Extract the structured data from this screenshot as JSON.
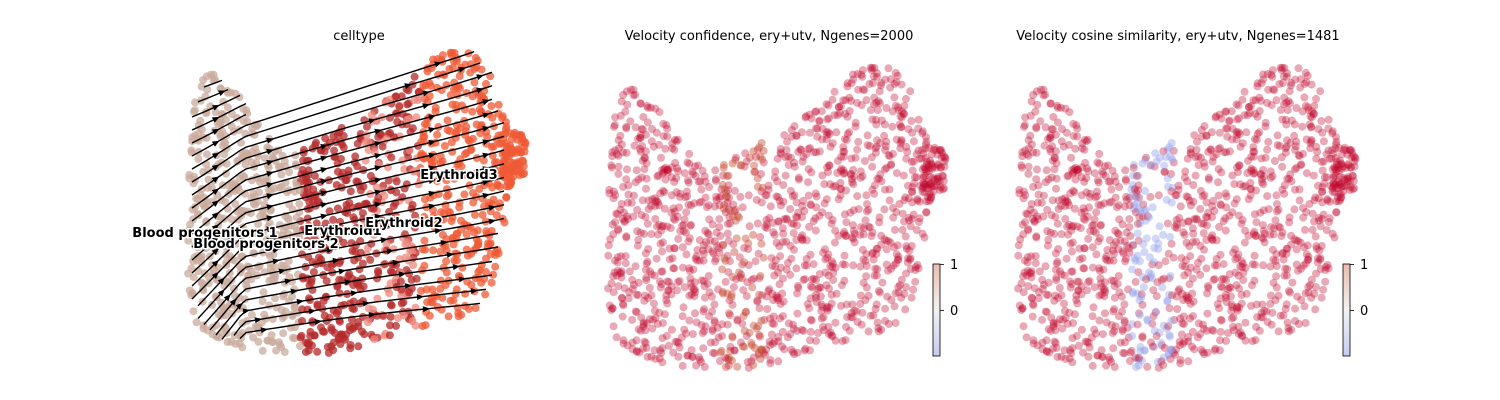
{
  "colors": {
    "blood_progenitors": "#c9ab9c",
    "erythroid1": "#b52a2a",
    "erythroid2": "#ee8a7e",
    "erythroid3": "#ef5a34",
    "velocity_high": "#c1062c",
    "velocity_low": "#9aa7ea",
    "stream": "#000000"
  },
  "chart_data": [
    {
      "type": "scatter",
      "title": "celltype",
      "overlay": "velocity streamlines",
      "legend": "on data",
      "grid": false,
      "categories": [
        "Blood progenitors 1",
        "Blood progenitors 2",
        "Erythroid1",
        "Erythroid2",
        "Erythroid3"
      ],
      "clusters": [
        {
          "name": "Blood progenitors 1",
          "color": "#c9ab9c",
          "center": [
            -9.5,
            0.4
          ]
        },
        {
          "name": "Blood progenitors 2",
          "color": "#c0a092",
          "center": [
            -6.5,
            0.0
          ]
        },
        {
          "name": "Erythroid1",
          "color": "#b52a2a",
          "center": [
            -3.0,
            0.3
          ]
        },
        {
          "name": "Erythroid2",
          "color": "#ee8a7e",
          "center": [
            1.0,
            1.0
          ]
        },
        {
          "name": "Erythroid3",
          "color": "#ef5a34",
          "center": [
            6.0,
            3.5
          ]
        }
      ]
    },
    {
      "type": "scatter",
      "title": "Velocity confidence, ery+utv, Ngenes=2000",
      "grid": false,
      "colorbar": {
        "ticks": [
          "1",
          "0"
        ],
        "range": [
          -1,
          1
        ],
        "cmap": "coolwarm"
      },
      "value_summary": {
        "majority": 1.0,
        "center_band": 0.85
      }
    },
    {
      "type": "scatter",
      "title": "Velocity cosine similarity, ery+utv, Ngenes=1481",
      "grid": false,
      "colorbar": {
        "ticks": [
          "1",
          "0"
        ],
        "range": [
          -1,
          1
        ],
        "cmap": "coolwarm"
      },
      "value_summary": {
        "majority": 1.0,
        "center_band": -0.2
      }
    }
  ]
}
